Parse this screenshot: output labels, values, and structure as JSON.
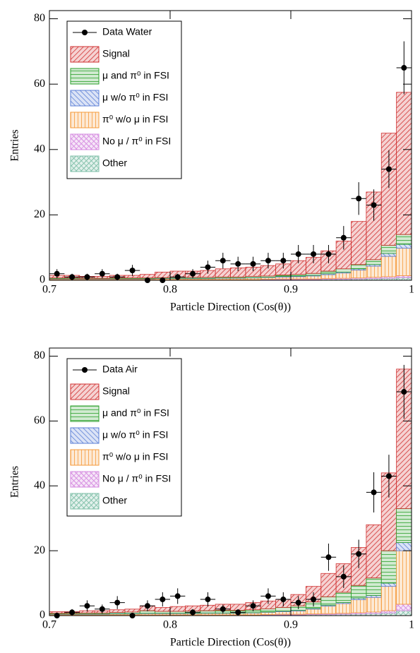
{
  "chart_data": [
    {
      "type": "histogram",
      "stacked": true,
      "xlabel": "Particle Direction (Cos(θ))",
      "ylabel": "Entries",
      "xlim": [
        0.7,
        1
      ],
      "ylim": [
        0,
        82.5
      ],
      "xticks": [
        0.7,
        0.8,
        0.9,
        1
      ],
      "yticks": [
        0,
        20,
        40,
        60,
        80
      ],
      "legend": "upper left",
      "bins": [
        0.7,
        0.7125,
        0.725,
        0.7375,
        0.75,
        0.7625,
        0.775,
        0.7875,
        0.8,
        0.8125,
        0.825,
        0.8375,
        0.85,
        0.8625,
        0.875,
        0.8875,
        0.9,
        0.9125,
        0.925,
        0.9375,
        0.95,
        0.9625,
        0.975,
        0.9875,
        1
      ],
      "data_points": {
        "name": "Data Water",
        "color": "#000000",
        "values": [
          2,
          1,
          1,
          2,
          1,
          3,
          0,
          0,
          1,
          2,
          4,
          6,
          5,
          5,
          6,
          6,
          8,
          8,
          8,
          13,
          25,
          23,
          34,
          65
        ],
        "errors": [
          1.4,
          1,
          1,
          1.4,
          1,
          1.7,
          0,
          0,
          1,
          1.4,
          2,
          2.4,
          2.2,
          2.2,
          2.4,
          2.4,
          2.8,
          2.8,
          2.8,
          3.6,
          5,
          4.8,
          5.8,
          8.1
        ]
      },
      "series": [
        {
          "name": "Signal",
          "color": "#d03030",
          "values": [
            0.8,
            0.8,
            0.6,
            0.6,
            0.8,
            0.8,
            1.1,
            1.7,
            1.9,
            1.9,
            2.1,
            2.5,
            2.8,
            2.8,
            3.2,
            3.4,
            4.2,
            4.9,
            6.2,
            8.5,
            13.2,
            20.7,
            34.3,
            43.5
          ]
        },
        {
          "name": "μ and π⁰ in FSI",
          "color": "#2ca02c",
          "values": [
            0.2,
            0.2,
            0.1,
            0.1,
            0.2,
            0.2,
            0.2,
            0.2,
            0.3,
            0.3,
            0.3,
            0.3,
            0.3,
            0.4,
            0.4,
            0.4,
            0.5,
            0.6,
            0.8,
            1.0,
            1.3,
            1.5,
            2.5,
            3.0
          ]
        },
        {
          "name": "μ w/o π⁰ in FSI",
          "color": "#5b7fd6",
          "values": [
            0.1,
            0.1,
            0.1,
            0.1,
            0.1,
            0.1,
            0.1,
            0.1,
            0.1,
            0.1,
            0.1,
            0.1,
            0.1,
            0.1,
            0.1,
            0.2,
            0.2,
            0.2,
            0.3,
            0.3,
            0.4,
            0.5,
            0.9,
            1.2
          ]
        },
        {
          "name": "π⁰ w/o μ in FSI",
          "color": "#f59a3a",
          "values": [
            0.2,
            0.2,
            0.2,
            0.2,
            0.2,
            0.2,
            0.2,
            0.3,
            0.3,
            0.3,
            0.3,
            0.4,
            0.4,
            0.5,
            0.5,
            0.6,
            0.7,
            0.9,
            1.2,
            1.6,
            2.4,
            3.4,
            6.2,
            8.4
          ]
        },
        {
          "name": "No μ / π⁰ in FSI",
          "color": "#d58be0",
          "values": [
            0.1,
            0.1,
            0.1,
            0.1,
            0.1,
            0.1,
            0.1,
            0.1,
            0.1,
            0.1,
            0.1,
            0.1,
            0.1,
            0.1,
            0.1,
            0.2,
            0.2,
            0.2,
            0.2,
            0.3,
            0.3,
            0.4,
            0.5,
            0.6
          ]
        },
        {
          "name": "Other",
          "color": "#7fbfa8",
          "values": [
            0.1,
            0.1,
            0.1,
            0.1,
            0.1,
            0.1,
            0.1,
            0.1,
            0.1,
            0.1,
            0.1,
            0.1,
            0.1,
            0.1,
            0.2,
            0.2,
            0.2,
            0.2,
            0.3,
            0.3,
            0.4,
            0.5,
            0.6,
            0.8
          ]
        }
      ]
    },
    {
      "type": "histogram",
      "stacked": true,
      "xlabel": "Particle Direction (Cos(θ))",
      "ylabel": "Entries",
      "xlim": [
        0.7,
        1
      ],
      "ylim": [
        0,
        82.5
      ],
      "xticks": [
        0.7,
        0.8,
        0.9,
        1
      ],
      "yticks": [
        0,
        20,
        40,
        60,
        80
      ],
      "legend": "upper left",
      "bins": [
        0.7,
        0.7125,
        0.725,
        0.7375,
        0.75,
        0.7625,
        0.775,
        0.7875,
        0.8,
        0.8125,
        0.825,
        0.8375,
        0.85,
        0.8625,
        0.875,
        0.8875,
        0.9,
        0.9125,
        0.925,
        0.9375,
        0.95,
        0.9625,
        0.975,
        0.9875,
        1
      ],
      "data_points": {
        "name": "Data Air",
        "color": "#000000",
        "values": [
          0,
          1,
          3,
          2,
          4,
          0,
          3,
          5,
          6,
          1,
          5,
          2,
          1,
          3,
          6,
          5,
          4,
          5,
          18,
          12,
          19,
          38,
          43,
          69
        ],
        "errors": [
          0,
          1,
          1.7,
          1.4,
          2,
          0,
          1.7,
          2.2,
          2.4,
          1,
          2.2,
          1.4,
          1,
          1.7,
          2.4,
          2.2,
          2,
          2.2,
          4.2,
          3.5,
          4.4,
          6.2,
          6.6,
          8.3
        ]
      },
      "series": [
        {
          "name": "Signal",
          "color": "#d03030",
          "values": [
            0.5,
            0.5,
            0.7,
            0.7,
            0.8,
            0.9,
            1.5,
            1.2,
            1.5,
            1.6,
            1.7,
            1.9,
            1.9,
            2.2,
            2.4,
            2.5,
            3.5,
            4.8,
            7.2,
            8.8,
            11.7,
            16.4,
            24,
            43
          ]
        },
        {
          "name": "μ and π⁰ in FSI",
          "color": "#2ca02c",
          "values": [
            0.2,
            0.2,
            0.3,
            0.3,
            0.4,
            0.5,
            0.8,
            0.6,
            0.6,
            0.7,
            0.7,
            0.8,
            0.8,
            0.9,
            1.0,
            1.1,
            1.4,
            2.0,
            2.6,
            3.2,
            3.9,
            5.4,
            10.0,
            10.5
          ]
        },
        {
          "name": "μ w/o π⁰ in FSI",
          "color": "#5b7fd6",
          "values": [
            0.1,
            0.1,
            0.1,
            0.1,
            0.1,
            0.1,
            0.1,
            0.1,
            0.1,
            0.1,
            0.1,
            0.1,
            0.1,
            0.1,
            0.1,
            0.2,
            0.2,
            0.2,
            0.3,
            0.3,
            0.5,
            0.6,
            1.0,
            2.5
          ]
        },
        {
          "name": "π⁰ w/o μ in FSI",
          "color": "#f59a3a",
          "values": [
            0.2,
            0.2,
            0.2,
            0.2,
            0.3,
            0.3,
            0.4,
            0.4,
            0.4,
            0.4,
            0.5,
            0.5,
            0.5,
            0.6,
            0.7,
            0.8,
            1.0,
            1.5,
            2.3,
            3.0,
            4.0,
            4.5,
            7.5,
            16.5
          ]
        },
        {
          "name": "No μ / π⁰ in FSI",
          "color": "#d58be0",
          "values": [
            0.1,
            0.1,
            0.1,
            0.1,
            0.1,
            0.1,
            0.1,
            0.1,
            0.1,
            0.1,
            0.1,
            0.1,
            0.1,
            0.1,
            0.1,
            0.2,
            0.2,
            0.2,
            0.3,
            0.3,
            0.4,
            0.5,
            0.7,
            2.0
          ]
        },
        {
          "name": "Other",
          "color": "#7fbfa8",
          "values": [
            0.1,
            0.1,
            0.1,
            0.1,
            0.1,
            0.1,
            0.1,
            0.1,
            0.1,
            0.1,
            0.1,
            0.1,
            0.1,
            0.1,
            0.2,
            0.2,
            0.2,
            0.3,
            0.3,
            0.4,
            0.5,
            0.6,
            0.8,
            1.5
          ]
        }
      ]
    }
  ]
}
